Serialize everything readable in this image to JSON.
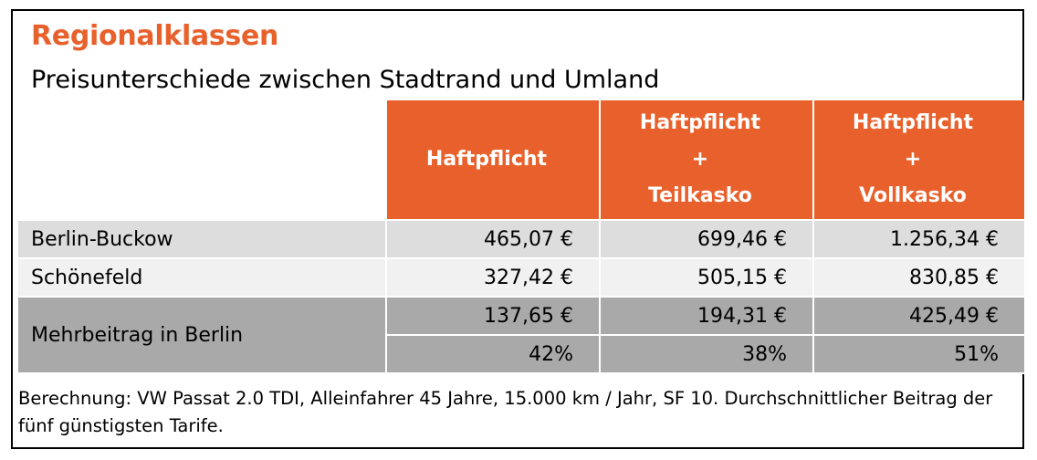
{
  "title": "Regionalklassen",
  "subtitle": "Preisunterschiede zwischen Stadtrand und Umland",
  "columns": [
    {
      "lines": [
        "Haftpflicht"
      ]
    },
    {
      "lines": [
        "Haftpflicht",
        "+",
        "Teilkasko"
      ]
    },
    {
      "lines": [
        "Haftpflicht",
        "+",
        "Vollkasko"
      ]
    }
  ],
  "rows": [
    {
      "label": "Berlin-Buckow",
      "values": [
        "465,07 €",
        "699,46 €",
        "1.256,34 €"
      ]
    },
    {
      "label": "Schönefeld",
      "values": [
        "327,42 €",
        "505,15 €",
        "830,85 €"
      ]
    }
  ],
  "difference": {
    "label": "Mehrbeitrag in Berlin",
    "absolute": [
      "137,65 €",
      "194,31 €",
      "425,49 €"
    ],
    "percent": [
      "42%",
      "38%",
      "51%"
    ]
  },
  "footnote": "Berechnung: VW Passat 2.0 TDI, Alleinfahrer 45 Jahre, 15.000 km / Jahr, SF 10. Durchschnittlicher Beitrag der fünf günstigsten Tarife.",
  "colors": {
    "accent": "#e8612c",
    "row_grey": "#dddddd",
    "row_light": "#f1f1f1",
    "row_dark": "#a9a9a9"
  }
}
